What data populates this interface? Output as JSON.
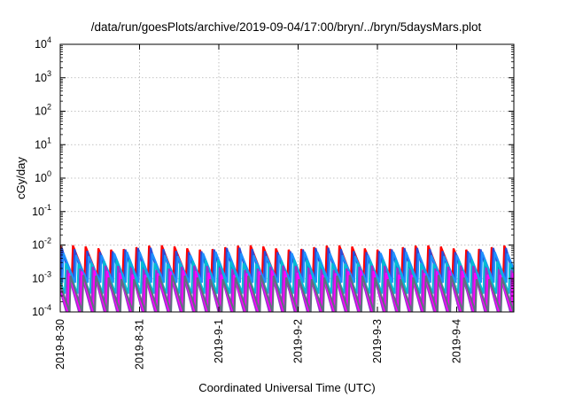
{
  "chart_data": {
    "type": "line",
    "title": "/data/run/goesPlots/archive/2019-09-04/17:00/bryn/../bryn/5daysMars.plot",
    "xlabel": "Coordinated Universal Time (UTC)",
    "ylabel": "cGy/day",
    "yscale": "log",
    "ylim": [
      0.0001,
      10000
    ],
    "y_ticks": [
      {
        "base": "10",
        "exp": "4"
      },
      {
        "base": "10",
        "exp": "3"
      },
      {
        "base": "10",
        "exp": "2"
      },
      {
        "base": "10",
        "exp": "1"
      },
      {
        "base": "10",
        "exp": "0"
      },
      {
        "base": "10",
        "exp": "-1"
      },
      {
        "base": "10",
        "exp": "-2"
      },
      {
        "base": "10",
        "exp": "-3"
      },
      {
        "base": "10",
        "exp": "-4"
      }
    ],
    "x_ticks": [
      "2019-8-30",
      "2019-8-31",
      "2019-9-1",
      "2019-9-2",
      "2019-9-3",
      "2019-9-4"
    ],
    "xlim_days": [
      0,
      5.72
    ],
    "grid": true,
    "sawtooth_period_days": 0.16,
    "series": [
      {
        "color": "#ff0000",
        "peak": 0.0085,
        "trough": 0.0012,
        "phase": 0.0
      },
      {
        "color": "#2a4bd7",
        "peak": 0.0072,
        "trough": 0.00045,
        "phase": 0.02
      },
      {
        "color": "#1e90ff",
        "peak": 0.0055,
        "trough": 0.00075,
        "phase": 0.04
      },
      {
        "color": "#00bcd4",
        "peak": 0.0032,
        "trough": 0.00035,
        "phase": 0.07
      },
      {
        "color": "#9932cc",
        "peak": 0.0021,
        "trough": 0.0001,
        "phase": 0.09
      },
      {
        "color": "#ff00ff",
        "peak": 0.0015,
        "trough": 0.0001,
        "phase": 0.11
      },
      {
        "color": "#607080",
        "peak": 0.0011,
        "trough": 0.0001,
        "phase": 0.13
      }
    ]
  }
}
